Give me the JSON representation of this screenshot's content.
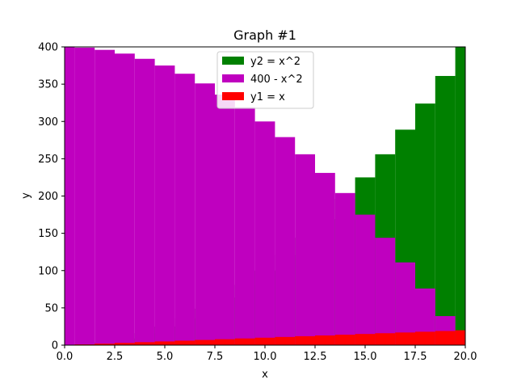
{
  "chart_data": {
    "type": "bar",
    "title": "Graph #1",
    "xlabel": "x",
    "ylabel": "y",
    "xlim": [
      0,
      20
    ],
    "ylim": [
      0,
      400
    ],
    "xticks": [
      "0.0",
      "2.5",
      "5.0",
      "7.5",
      "10.0",
      "12.5",
      "15.0",
      "17.5",
      "20.0"
    ],
    "yticks": [
      "0",
      "50",
      "100",
      "150",
      "200",
      "250",
      "300",
      "350",
      "400"
    ],
    "grid": false,
    "legend_position": "top-center",
    "x": [
      0,
      1,
      2,
      3,
      4,
      5,
      6,
      7,
      8,
      9,
      10,
      11,
      12,
      13,
      14,
      15,
      16,
      17,
      18,
      19,
      20
    ],
    "series": [
      {
        "name": "y2 = x^2",
        "color": "#008000",
        "values": [
          0,
          1,
          4,
          9,
          16,
          25,
          36,
          49,
          64,
          81,
          100,
          121,
          144,
          169,
          196,
          225,
          256,
          289,
          324,
          361,
          400
        ]
      },
      {
        "name": "400 - x^2",
        "color": "#bf00bf",
        "values": [
          400,
          399,
          396,
          391,
          384,
          375,
          364,
          351,
          336,
          319,
          300,
          279,
          256,
          231,
          204,
          175,
          144,
          111,
          76,
          39,
          0
        ]
      },
      {
        "name": "y1 = x",
        "color": "#ff0000",
        "values": [
          0,
          1,
          2,
          3,
          4,
          5,
          6,
          7,
          8,
          9,
          10,
          11,
          12,
          13,
          14,
          15,
          16,
          17,
          18,
          19,
          20
        ]
      }
    ]
  }
}
